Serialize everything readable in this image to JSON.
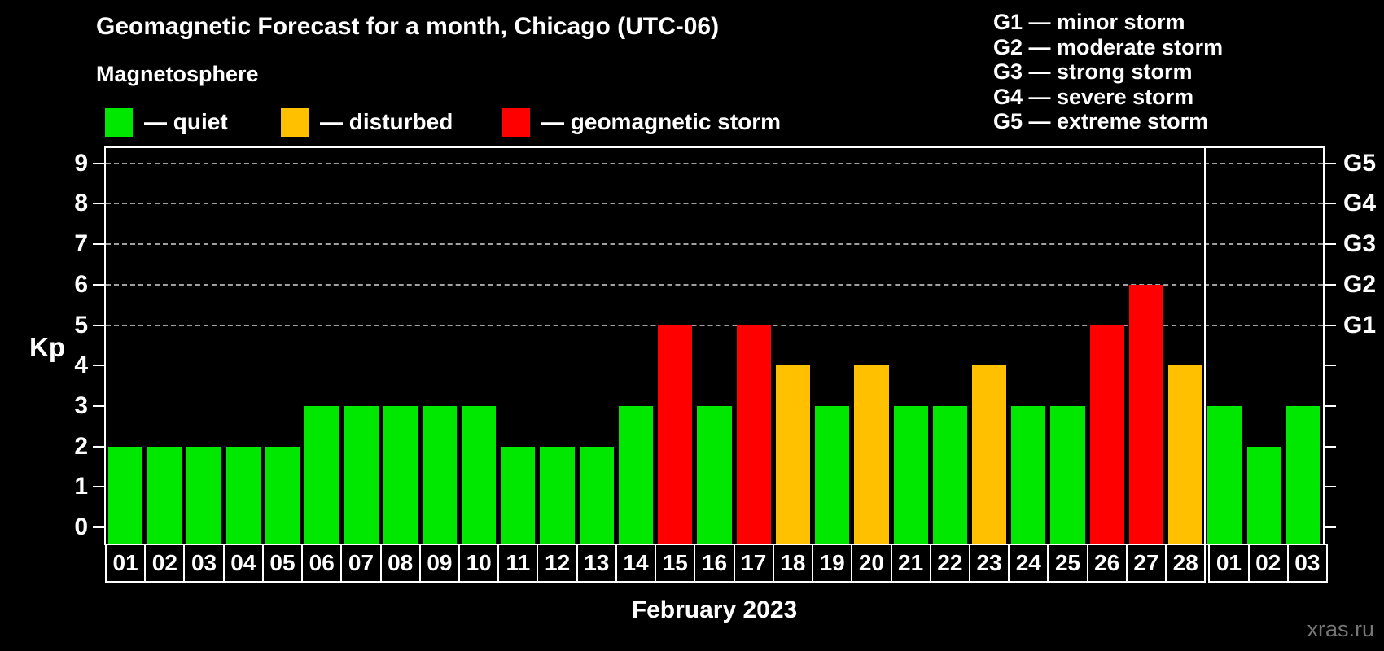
{
  "title": "Geomagnetic Forecast for a month, Chicago (UTC-06)",
  "subtitle": "Magnetosphere",
  "legend": {
    "items": [
      {
        "key": "quiet",
        "label": "— quiet",
        "color": "#00e800"
      },
      {
        "key": "disturbed",
        "label": "— disturbed",
        "color": "#ffc000"
      },
      {
        "key": "storm",
        "label": "— geomagnetic storm",
        "color": "#ff0000"
      }
    ]
  },
  "g_scale_legend": {
    "items": [
      "G1 — minor storm",
      "G2 — moderate storm",
      "G3 — strong storm",
      "G4 — severe storm",
      "G5 — extreme storm"
    ]
  },
  "y_axis": {
    "label": "Kp",
    "ticks": [
      "0",
      "1",
      "2",
      "3",
      "4",
      "5",
      "6",
      "7",
      "8",
      "9"
    ]
  },
  "right_axis": {
    "labels": [
      {
        "text": "G1",
        "kp": 5
      },
      {
        "text": "G2",
        "kp": 6
      },
      {
        "text": "G3",
        "kp": 7
      },
      {
        "text": "G4",
        "kp": 8
      },
      {
        "text": "G5",
        "kp": 9
      }
    ]
  },
  "x_axis_label": "February 2023",
  "watermark": "xras.ru",
  "colors": {
    "background": "#000000",
    "axis": "#ffffff",
    "gridline": "#a0a0a0",
    "watermark": "#767676",
    "quiet": "#00e800",
    "disturbed": "#ffc000",
    "storm": "#ff0000"
  },
  "chart_data": {
    "type": "bar",
    "title": "Geomagnetic Forecast for a month, Chicago (UTC-06)",
    "xlabel": "February 2023",
    "ylabel": "Kp",
    "ylim": [
      0,
      9
    ],
    "grid": "dashed horizontal at Kp 5-9",
    "gridlines_at": [
      5,
      6,
      7,
      8,
      9
    ],
    "legend_position": "top-left",
    "categories": [
      "01",
      "02",
      "03",
      "04",
      "05",
      "06",
      "07",
      "08",
      "09",
      "10",
      "11",
      "12",
      "13",
      "14",
      "15",
      "16",
      "17",
      "18",
      "19",
      "20",
      "21",
      "22",
      "23",
      "24",
      "25",
      "26",
      "27",
      "28",
      "01",
      "02",
      "03"
    ],
    "values": [
      2,
      2,
      2,
      2,
      2,
      3,
      3,
      3,
      3,
      3,
      2,
      2,
      2,
      3,
      5,
      3,
      5,
      4,
      3,
      4,
      3,
      3,
      4,
      3,
      3,
      5,
      6,
      4,
      3,
      2,
      3
    ],
    "status": [
      "quiet",
      "quiet",
      "quiet",
      "quiet",
      "quiet",
      "quiet",
      "quiet",
      "quiet",
      "quiet",
      "quiet",
      "quiet",
      "quiet",
      "quiet",
      "quiet",
      "storm",
      "quiet",
      "storm",
      "disturbed",
      "quiet",
      "disturbed",
      "quiet",
      "quiet",
      "disturbed",
      "quiet",
      "quiet",
      "storm",
      "storm",
      "disturbed",
      "quiet",
      "quiet",
      "quiet"
    ],
    "month_separator_after_index": 27
  }
}
